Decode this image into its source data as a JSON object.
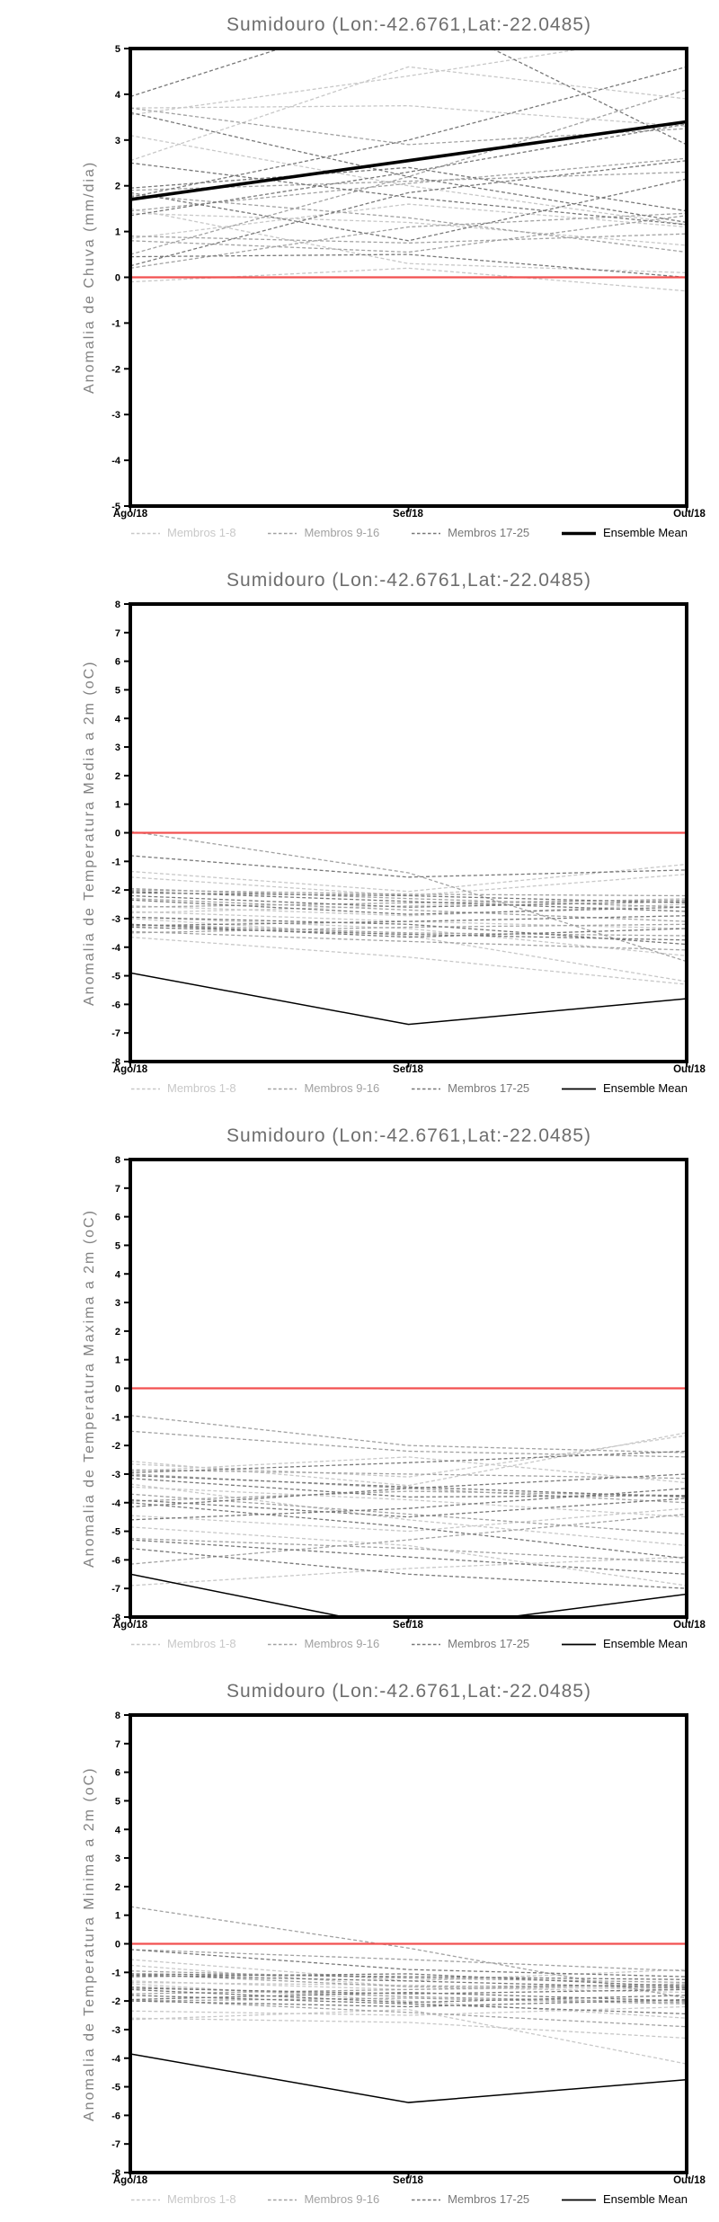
{
  "colors": {
    "members_1_8": "#c8c8c8",
    "members_9_16": "#a2a2a2",
    "members_17_25": "#787878",
    "ensemble_mean": "#000000",
    "zero_line": "#f25050",
    "title_text": "#6e6e6e",
    "axis_text": "#000000"
  },
  "chart_data": [
    {
      "type": "line",
      "title": "Sumidouro (Lon:-42.6761,Lat:-22.0485)",
      "ylabel": "Anomalia de Chuva (mm/dia)",
      "categories": [
        "Ago/18",
        "Set/18",
        "Out/18"
      ],
      "ylim": [
        -5,
        5
      ],
      "ytick_step": 1,
      "grid": false,
      "legend_position": "bottom",
      "zero_line": {
        "y": 0,
        "color_key": "zero_line"
      },
      "series": [
        {
          "name": "Membros 1-8",
          "style": "dashed",
          "color_key": "members_1_8",
          "members": [
            [
              3.7,
              3.75,
              3.3
            ],
            [
              3.55,
              4.4,
              5.35
            ],
            [
              3.1,
              2.0,
              1.15
            ],
            [
              2.55,
              4.6,
              3.9
            ],
            [
              1.5,
              0.3,
              0.1
            ],
            [
              1.4,
              1.2,
              0.7
            ],
            [
              0.85,
              1.6,
              1.1
            ],
            [
              -0.1,
              0.2,
              -0.3
            ]
          ]
        },
        {
          "name": "Membros 9-16",
          "style": "dashed",
          "color_key": "members_9_16",
          "members": [
            [
              3.7,
              2.9,
              3.25
            ],
            [
              1.9,
              2.1,
              2.3
            ],
            [
              1.8,
              1.3,
              0.55
            ],
            [
              1.45,
              2.05,
              2.6
            ],
            [
              0.8,
              0.55,
              1.35
            ],
            [
              0.5,
              2.2,
              4.1
            ],
            [
              0.2,
              1.1,
              1.4
            ],
            [
              0.9,
              0.75,
              0.95
            ]
          ]
        },
        {
          "name": "Membros 17-25",
          "style": "dashed",
          "color_key": "members_17_25",
          "members": [
            [
              3.95,
              5.9,
              2.9
            ],
            [
              3.6,
              2.2,
              1.2
            ],
            [
              2.5,
              1.75,
              1.15
            ],
            [
              1.95,
              2.4,
              1.45
            ],
            [
              1.85,
              0.8,
              2.15
            ],
            [
              1.75,
              3.0,
              4.6
            ],
            [
              1.35,
              2.3,
              3.35
            ],
            [
              0.45,
              0.5,
              0.0
            ],
            [
              0.25,
              1.85,
              2.55
            ]
          ]
        },
        {
          "name": "Ensemble Mean",
          "style": "solid",
          "thick": true,
          "color_key": "ensemble_mean",
          "members": [
            [
              1.7,
              2.55,
              3.4
            ]
          ]
        }
      ]
    },
    {
      "type": "line",
      "title": "Sumidouro (Lon:-42.6761,Lat:-22.0485)",
      "ylabel": "Anomalia de Temperatura Media a 2m (oC)",
      "categories": [
        "Ago/18",
        "Set/18",
        "Out/18"
      ],
      "ylim": [
        -8,
        8
      ],
      "ytick_step": 1,
      "grid": false,
      "legend_position": "bottom",
      "zero_line": {
        "y": 0,
        "color_key": "zero_line"
      },
      "series": [
        {
          "name": "Membros 1-8",
          "style": "dashed",
          "color_key": "members_1_8",
          "members": [
            [
              -1.35,
              -2.05,
              -1.1
            ],
            [
              -1.55,
              -2.2,
              -1.45
            ],
            [
              -2.55,
              -2.9,
              -2.5
            ],
            [
              -2.75,
              -3.1,
              -3.35
            ],
            [
              -2.8,
              -2.55,
              -2.3
            ],
            [
              -2.95,
              -3.35,
              -4.3
            ],
            [
              -3.0,
              -3.6,
              -5.2
            ],
            [
              -3.65,
              -4.35,
              -5.3
            ]
          ]
        },
        {
          "name": "Membros 9-16",
          "style": "dashed",
          "color_key": "members_9_16",
          "members": [
            [
              0.05,
              -1.4,
              -4.5
            ],
            [
              -1.95,
              -2.3,
              -2.6
            ],
            [
              -2.0,
              -2.15,
              -2.2
            ],
            [
              -2.3,
              -2.7,
              -3.1
            ],
            [
              -2.6,
              -2.45,
              -2.35
            ],
            [
              -3.2,
              -3.5,
              -3.6
            ],
            [
              -3.45,
              -3.8,
              -4.1
            ],
            [
              -3.5,
              -3.3,
              -3.2
            ]
          ]
        },
        {
          "name": "Membros 17-25",
          "style": "dashed",
          "color_key": "members_17_25",
          "members": [
            [
              -0.8,
              -1.55,
              -1.3
            ],
            [
              -2.05,
              -2.4,
              -2.75
            ],
            [
              -2.1,
              -2.2,
              -2.45
            ],
            [
              -2.35,
              -2.85,
              -2.6
            ],
            [
              -3.25,
              -3.1,
              -2.9
            ],
            [
              -3.3,
              -3.55,
              -3.75
            ],
            [
              -3.2,
              -3.65,
              -3.35
            ],
            [
              -2.95,
              -3.2,
              -3.9
            ],
            [
              -2.2,
              -2.6,
              -2.4
            ]
          ]
        },
        {
          "name": "Ensemble Mean",
          "style": "solid",
          "thick": false,
          "color_key": "ensemble_mean",
          "members": [
            [
              -4.9,
              -6.7,
              -5.8
            ]
          ]
        }
      ]
    },
    {
      "type": "line",
      "title": "Sumidouro (Lon:-42.6761,Lat:-22.0485)",
      "ylabel": "Anomalia de Temperatura Maxima a 2m (oC)",
      "categories": [
        "Ago/18",
        "Set/18",
        "Out/18"
      ],
      "ylim": [
        -8,
        8
      ],
      "ytick_step": 1,
      "grid": false,
      "legend_position": "bottom",
      "zero_line": {
        "y": 0,
        "color_key": "zero_line"
      },
      "series": [
        {
          "name": "Membros 1-8",
          "style": "dashed",
          "color_key": "members_1_8",
          "members": [
            [
              -2.55,
              -3.4,
              -1.55
            ],
            [
              -2.65,
              -3.1,
              -1.65
            ],
            [
              -2.9,
              -2.4,
              -3.3
            ],
            [
              -3.35,
              -4.6,
              -5.5
            ],
            [
              -3.45,
              -3.9,
              -4.5
            ],
            [
              -4.45,
              -5.0,
              -4.2
            ],
            [
              -4.85,
              -5.5,
              -6.9
            ],
            [
              -6.9,
              -6.3,
              -5.9
            ]
          ]
        },
        {
          "name": "Membros 9-16",
          "style": "dashed",
          "color_key": "members_9_16",
          "members": [
            [
              -0.95,
              -2.0,
              -2.25
            ],
            [
              -1.5,
              -2.2,
              -2.4
            ],
            [
              -2.85,
              -3.0,
              -3.15
            ],
            [
              -3.0,
              -3.5,
              -4.0
            ],
            [
              -3.7,
              -4.4,
              -5.1
            ],
            [
              -3.95,
              -3.6,
              -3.75
            ],
            [
              -5.25,
              -5.6,
              -6.1
            ],
            [
              -6.15,
              -5.3,
              -4.4
            ]
          ]
        },
        {
          "name": "Membros 17-25",
          "style": "dashed",
          "color_key": "members_17_25",
          "members": [
            [
              -2.95,
              -2.6,
              -2.2
            ],
            [
              -3.05,
              -3.45,
              -3.8
            ],
            [
              -3.15,
              -3.8,
              -3.75
            ],
            [
              -3.9,
              -4.5,
              -3.85
            ],
            [
              -4.0,
              -4.85,
              -5.95
            ],
            [
              -4.15,
              -3.5,
              -3.0
            ],
            [
              -4.6,
              -4.2,
              -3.5
            ],
            [
              -5.3,
              -5.9,
              -6.5
            ],
            [
              -5.6,
              -6.5,
              -7.0
            ]
          ]
        },
        {
          "name": "Ensemble Mean",
          "style": "solid",
          "thick": false,
          "color_key": "ensemble_mean",
          "members": [
            [
              -6.5,
              -8.45,
              -7.2
            ]
          ]
        }
      ]
    },
    {
      "type": "line",
      "title": "Sumidouro (Lon:-42.6761,Lat:-22.0485)",
      "ylabel": "Anomalia de Temperatura Minima a 2m (oC)",
      "categories": [
        "Ago/18",
        "Set/18",
        "Out/18"
      ],
      "ylim": [
        -8,
        8
      ],
      "ytick_step": 1,
      "grid": false,
      "legend_position": "bottom",
      "zero_line": {
        "y": 0,
        "color_key": "zero_line"
      },
      "series": [
        {
          "name": "Membros 1-8",
          "style": "dashed",
          "color_key": "members_1_8",
          "members": [
            [
              -0.55,
              -1.3,
              -0.9
            ],
            [
              -0.75,
              -1.5,
              -1.7
            ],
            [
              -1.3,
              -1.6,
              -1.5
            ],
            [
              -1.35,
              -1.45,
              -1.6
            ],
            [
              -1.4,
              -2.0,
              -2.6
            ],
            [
              -2.35,
              -2.5,
              -2.2
            ],
            [
              -2.6,
              -2.75,
              -3.3
            ],
            [
              -2.65,
              -2.3,
              -4.2
            ]
          ]
        },
        {
          "name": "Membros 9-16",
          "style": "dashed",
          "color_key": "members_9_16",
          "members": [
            [
              1.3,
              -0.15,
              -1.9
            ],
            [
              -0.2,
              -0.55,
              -0.95
            ],
            [
              -0.95,
              -1.2,
              -1.35
            ],
            [
              -1.05,
              -1.5,
              -1.45
            ],
            [
              -1.5,
              -1.85,
              -2.05
            ],
            [
              -1.75,
              -1.6,
              -1.4
            ],
            [
              -1.95,
              -2.4,
              -2.9
            ],
            [
              -2.0,
              -1.9,
              -2.1
            ]
          ]
        },
        {
          "name": "Membros 17-25",
          "style": "dashed",
          "color_key": "members_17_25",
          "members": [
            [
              -0.2,
              -0.9,
              -1.15
            ],
            [
              -1.05,
              -1.15,
              -1.25
            ],
            [
              -1.1,
              -1.3,
              -1.55
            ],
            [
              -1.15,
              -1.05,
              -1.5
            ],
            [
              -1.55,
              -1.75,
              -1.6
            ],
            [
              -1.6,
              -2.05,
              -1.8
            ],
            [
              -1.8,
              -2.1,
              -2.45
            ],
            [
              -1.95,
              -1.7,
              -2.0
            ],
            [
              -2.0,
              -2.2,
              -1.95
            ]
          ]
        },
        {
          "name": "Ensemble Mean",
          "style": "solid",
          "thick": false,
          "color_key": "ensemble_mean",
          "members": [
            [
              -3.85,
              -5.55,
              -4.75
            ]
          ]
        }
      ]
    }
  ]
}
